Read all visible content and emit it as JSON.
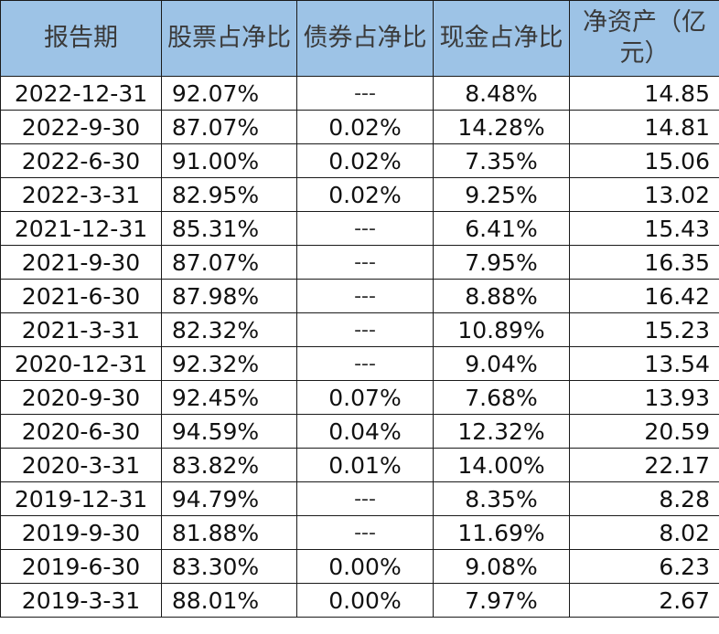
{
  "table": {
    "headers": [
      {
        "key": "date",
        "label": "报告期"
      },
      {
        "key": "stock",
        "label": "股票占净比"
      },
      {
        "key": "bond",
        "label": "债券占净比"
      },
      {
        "key": "cash",
        "label": "现金占净比"
      },
      {
        "key": "nav",
        "label": "净资产（亿元）"
      }
    ],
    "rows": [
      {
        "date": "2022-12-31",
        "stock": "92.07%",
        "bond": "---",
        "cash": "8.48%",
        "nav": "14.85"
      },
      {
        "date": "2022-9-30",
        "stock": "87.07%",
        "bond": "0.02%",
        "cash": "14.28%",
        "nav": "14.81"
      },
      {
        "date": "2022-6-30",
        "stock": "91.00%",
        "bond": "0.02%",
        "cash": "7.35%",
        "nav": "15.06"
      },
      {
        "date": "2022-3-31",
        "stock": "82.95%",
        "bond": "0.02%",
        "cash": "9.25%",
        "nav": "13.02"
      },
      {
        "date": "2021-12-31",
        "stock": "85.31%",
        "bond": "---",
        "cash": "6.41%",
        "nav": "15.43"
      },
      {
        "date": "2021-9-30",
        "stock": "87.07%",
        "bond": "---",
        "cash": "7.95%",
        "nav": "16.35"
      },
      {
        "date": "2021-6-30",
        "stock": "87.98%",
        "bond": "---",
        "cash": "8.88%",
        "nav": "16.42"
      },
      {
        "date": "2021-3-31",
        "stock": "82.32%",
        "bond": "---",
        "cash": "10.89%",
        "nav": "15.23"
      },
      {
        "date": "2020-12-31",
        "stock": "92.32%",
        "bond": "---",
        "cash": "9.04%",
        "nav": "13.54"
      },
      {
        "date": "2020-9-30",
        "stock": "92.45%",
        "bond": "0.07%",
        "cash": "7.68%",
        "nav": "13.93"
      },
      {
        "date": "2020-6-30",
        "stock": "94.59%",
        "bond": "0.04%",
        "cash": "12.32%",
        "nav": "20.59"
      },
      {
        "date": "2020-3-31",
        "stock": "83.82%",
        "bond": "0.01%",
        "cash": "14.00%",
        "nav": "22.17"
      },
      {
        "date": "2019-12-31",
        "stock": "94.79%",
        "bond": "---",
        "cash": "8.35%",
        "nav": "8.28"
      },
      {
        "date": "2019-9-30",
        "stock": "81.88%",
        "bond": "---",
        "cash": "11.69%",
        "nav": "8.02"
      },
      {
        "date": "2019-6-30",
        "stock": "83.30%",
        "bond": "0.00%",
        "cash": "9.08%",
        "nav": "6.23"
      },
      {
        "date": "2019-3-31",
        "stock": "88.01%",
        "bond": "0.00%",
        "cash": "7.97%",
        "nav": "2.67"
      }
    ]
  },
  "colors": {
    "header_background": "#9dc3e6",
    "grid_line": "#1a1a1a"
  }
}
